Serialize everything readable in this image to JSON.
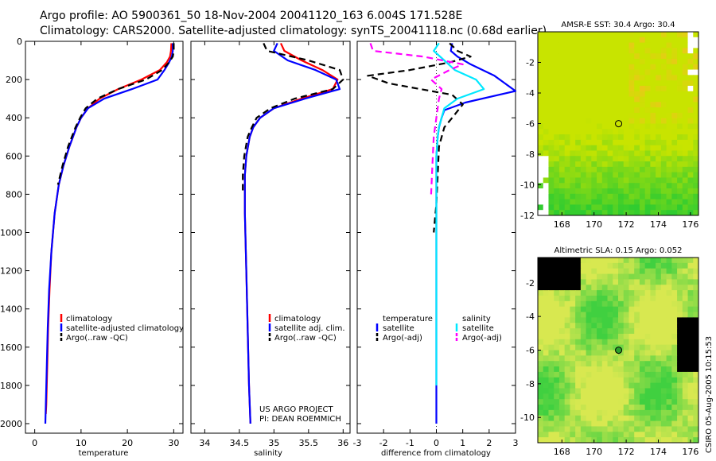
{
  "header": {
    "line1": "Argo profile: AO 5900361_50 18-Nov-2004 20041120_163 6.004S 171.528E",
    "line2": "Climatology: CARS2000. Satellite-adjusted climatology: synTS_20041118.nc (0.68d earlier)"
  },
  "colors": {
    "climatology": "#ff0000",
    "satellite": "#0000ff",
    "argo": "#000000",
    "salinity_sat": "#00e8ff",
    "salinity_argo": "#ff00ff",
    "sst_map": "#b0e000",
    "sla_map": "#a8e010"
  },
  "project": {
    "line1": "US ARGO PROJECT",
    "line2": "PI: DEAN ROEMMICH"
  },
  "stamp": "CSIRO 05-Aug-2005 10:15:53",
  "chart_data": [
    {
      "id": "temperature",
      "type": "line",
      "xlabel": "temperature",
      "ylabel": "",
      "xlim": [
        -2,
        32
      ],
      "ylim": [
        0,
        2050
      ],
      "y_inverted": true,
      "xticks": [
        0,
        10,
        20,
        30
      ],
      "xtick_labels": [
        "0",
        "10",
        "20",
        "30"
      ],
      "yticks": [
        0,
        200,
        400,
        600,
        800,
        1000,
        1200,
        1400,
        1600,
        1800,
        2000
      ],
      "ytick_labels": [
        "0",
        "200",
        "400",
        "600",
        "800",
        "1000",
        "1200",
        "1400",
        "1600",
        "1800",
        "2000"
      ],
      "legend": [
        "climatology",
        "satellite-adjusted climatology",
        "Argo(..raw -QC)"
      ],
      "series": [
        {
          "name": "climatology",
          "color": "#ff0000",
          "dash": "",
          "x": [
            29.5,
            29.4,
            29.2,
            28.5,
            27,
            23,
            18,
            14,
            11.5,
            10,
            9,
            7.5,
            6.2,
            5.2,
            4.3,
            3.6,
            3.2,
            2.9,
            2.7,
            2.5,
            2.4
          ],
          "y": [
            10,
            50,
            80,
            110,
            150,
            200,
            250,
            300,
            350,
            400,
            450,
            550,
            650,
            750,
            900,
            1100,
            1300,
            1500,
            1700,
            1900,
            1950
          ]
        },
        {
          "name": "satellite-adjusted climatology",
          "color": "#0000ff",
          "dash": "",
          "x": [
            29.8,
            29.8,
            29.6,
            29.0,
            28.0,
            26.5,
            21,
            15,
            11.5,
            10,
            9,
            7.5,
            6.2,
            5.2,
            4.3,
            3.6,
            3.1,
            2.8,
            2.6,
            2.4,
            2.3
          ],
          "y": [
            10,
            50,
            80,
            110,
            150,
            200,
            250,
            300,
            350,
            400,
            450,
            550,
            650,
            750,
            900,
            1100,
            1300,
            1500,
            1700,
            1900,
            2000
          ]
        },
        {
          "name": "Argo(..raw -QC)",
          "color": "#000000",
          "dash": "8,5",
          "x": [
            30.0,
            30.0,
            29.8,
            29.0,
            27.5,
            24,
            18,
            13.5,
            11,
            9.8,
            8.8,
            7.2,
            6.0,
            5.0
          ],
          "y": [
            10,
            50,
            80,
            110,
            150,
            200,
            250,
            300,
            350,
            400,
            450,
            550,
            650,
            750
          ]
        }
      ]
    },
    {
      "id": "salinity",
      "type": "line",
      "xlabel": "salinity",
      "ylabel": "",
      "xlim": [
        33.8,
        36.1
      ],
      "ylim": [
        0,
        2050
      ],
      "y_inverted": true,
      "xticks": [
        34,
        34.5,
        35,
        35.5,
        36
      ],
      "xtick_labels": [
        "34",
        "34.5",
        "35",
        "35.5",
        "36"
      ],
      "legend": [
        "climatology",
        "satellite adj. clim.",
        "Argo(..raw -QC)"
      ],
      "series": [
        {
          "name": "climatology",
          "color": "#ff0000",
          "dash": "",
          "x": [
            35.1,
            35.15,
            35.4,
            35.7,
            35.92,
            35.85,
            35.4,
            35.0,
            34.8,
            34.7,
            34.65,
            34.6,
            34.58,
            34.58,
            34.6,
            34.62,
            34.64,
            34.66
          ],
          "y": [
            10,
            50,
            100,
            150,
            200,
            250,
            300,
            350,
            400,
            450,
            500,
            600,
            700,
            900,
            1200,
            1500,
            1800,
            2000
          ]
        },
        {
          "name": "satellite adj. clim.",
          "color": "#0000ff",
          "dash": "",
          "x": [
            35.05,
            35.0,
            35.2,
            35.6,
            35.9,
            35.95,
            35.45,
            35.0,
            34.8,
            34.7,
            34.65,
            34.6,
            34.58,
            34.58,
            34.6,
            34.62,
            34.64,
            34.66
          ],
          "y": [
            10,
            50,
            100,
            150,
            200,
            250,
            300,
            350,
            400,
            450,
            500,
            600,
            700,
            900,
            1200,
            1500,
            1800,
            2000
          ]
        },
        {
          "name": "Argo(..raw -QC)",
          "color": "#000000",
          "dash": "8,5",
          "x": [
            34.85,
            34.9,
            35.5,
            35.95,
            36.0,
            35.85,
            35.3,
            34.95,
            34.75,
            34.68,
            34.62,
            34.57,
            34.55,
            34.55
          ],
          "y": [
            10,
            50,
            100,
            150,
            200,
            250,
            300,
            350,
            400,
            450,
            500,
            600,
            700,
            800
          ]
        }
      ]
    },
    {
      "id": "difference",
      "type": "line",
      "xlabel": "difference from climatology",
      "ylabel": "",
      "xlim": [
        -3,
        3
      ],
      "ylim": [
        0,
        2050
      ],
      "y_inverted": true,
      "xticks": [
        -3,
        -2,
        -1,
        0,
        1,
        2,
        3
      ],
      "xtick_labels": [
        "-3",
        "-2",
        "-1",
        "0",
        "1",
        "2",
        "3"
      ],
      "legend_temperature": {
        "title": "temperature",
        "items": [
          "satellite",
          "Argo(-adj)"
        ]
      },
      "legend_salinity": {
        "title": "salinity",
        "items": [
          "satellite",
          "Argo(-adj)"
        ]
      },
      "series": [
        {
          "name": "temperature satellite",
          "color": "#0000ff",
          "dash": "",
          "x": [
            0.6,
            0.55,
            0.8,
            1.3,
            2.2,
            3.0,
            1.1,
            0.3,
            0.2,
            0.1,
            0.05,
            0.0,
            0.0,
            0.0,
            0.0,
            0.0,
            0.0
          ],
          "y": [
            10,
            50,
            80,
            120,
            180,
            260,
            320,
            360,
            400,
            450,
            500,
            600,
            800,
            1000,
            1400,
            1800,
            2000
          ]
        },
        {
          "name": "temperature Argo(-adj)",
          "color": "#000000",
          "dash": "8,5",
          "x": [
            0.5,
            0.8,
            1.3,
            0.5,
            -1.0,
            -2.6,
            -1.8,
            0.6,
            1.0,
            0.6,
            0.3,
            0.1,
            0.05,
            0.0,
            -0.1
          ],
          "y": [
            10,
            50,
            80,
            110,
            150,
            180,
            220,
            280,
            330,
            400,
            450,
            550,
            700,
            850,
            1000
          ]
        },
        {
          "name": "salinity satellite",
          "color": "#00e8ff",
          "dash": "",
          "x": [
            0.1,
            -0.1,
            0.3,
            0.7,
            1.5,
            1.8,
            0.8,
            0.3,
            0.2,
            0.1,
            0.05,
            0.0,
            0.0,
            0.0,
            0.0,
            0.0
          ],
          "y": [
            10,
            50,
            100,
            150,
            200,
            250,
            300,
            350,
            400,
            450,
            500,
            600,
            800,
            1000,
            1400,
            1800
          ]
        },
        {
          "name": "salinity Argo(-adj)",
          "color": "#ff00ff",
          "dash": "8,5",
          "x": [
            -2.5,
            -2.4,
            -0.5,
            1.0,
            0.5,
            -0.2,
            0.2,
            0.1,
            0.0,
            -0.1,
            -0.15,
            -0.2
          ],
          "y": [
            10,
            50,
            80,
            120,
            150,
            200,
            250,
            300,
            400,
            500,
            650,
            800
          ]
        }
      ]
    },
    {
      "id": "sst_map",
      "type": "heatmap",
      "title": "AMSR-E SST: 30.4 Argo: 30.4",
      "xlim": [
        166.5,
        176.5
      ],
      "ylim": [
        -12,
        0
      ],
      "xticks": [
        168,
        170,
        172,
        174,
        176
      ],
      "xtick_labels": [
        "168",
        "170",
        "172",
        "174",
        "176"
      ],
      "yticks": [
        -2,
        -4,
        -6,
        -8,
        -10,
        -12
      ],
      "ytick_labels": [
        "-2",
        "-4",
        "-6",
        "-8",
        "-10",
        "-12"
      ],
      "marker": {
        "lon": 171.528,
        "lat": -6.004
      }
    },
    {
      "id": "sla_map",
      "type": "heatmap",
      "title": "Altimetric SLA: 0.15 Argo: 0.052",
      "xlim": [
        166.5,
        176.5
      ],
      "ylim": [
        -11.5,
        -0.5
      ],
      "xticks": [
        168,
        170,
        172,
        174,
        176
      ],
      "xtick_labels": [
        "168",
        "170",
        "172",
        "174",
        "176"
      ],
      "yticks": [
        -2,
        -4,
        -6,
        -8,
        -10
      ],
      "ytick_labels": [
        "-2",
        "-4",
        "-6",
        "-8",
        "-10"
      ],
      "marker": {
        "lon": 171.528,
        "lat": -6.004
      }
    }
  ]
}
